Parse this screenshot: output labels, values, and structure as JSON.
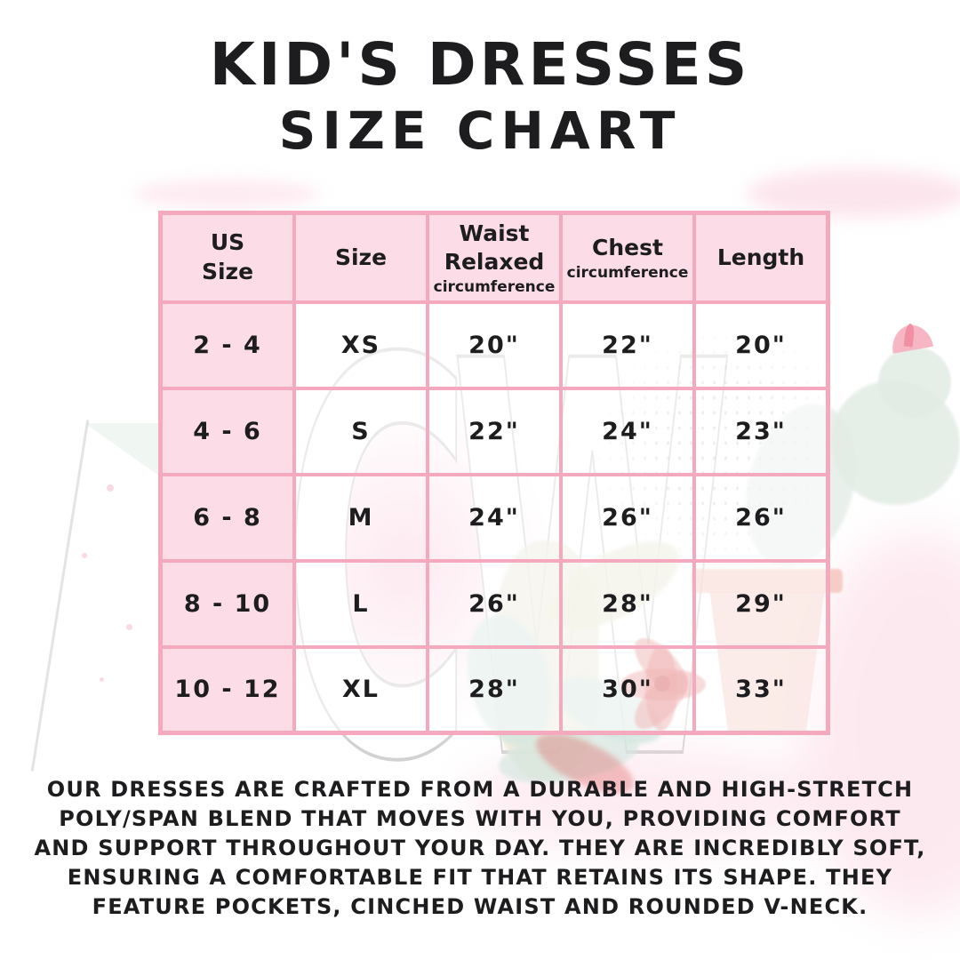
{
  "title": {
    "line1": "KID'S DRESSES",
    "line2": "SIZE CHART"
  },
  "chart_data": {
    "type": "table",
    "title": "Kid's Dresses Size Chart",
    "columns": [
      {
        "label": "US\nSize",
        "sub": ""
      },
      {
        "label": "Size",
        "sub": ""
      },
      {
        "label": "Waist\nRelaxed",
        "sub": "circumference"
      },
      {
        "label": "Chest",
        "sub": "circumference"
      },
      {
        "label": "Length",
        "sub": ""
      }
    ],
    "rows": [
      {
        "us": "2 - 4",
        "size": "XS",
        "waist": "20\"",
        "chest": "22\"",
        "length": "20\""
      },
      {
        "us": "4 - 6",
        "size": "S",
        "waist": "22\"",
        "chest": "24\"",
        "length": "23\""
      },
      {
        "us": "6 - 8",
        "size": "M",
        "waist": "24\"",
        "chest": "26\"",
        "length": "26\""
      },
      {
        "us": "8 - 10",
        "size": "L",
        "waist": "26\"",
        "chest": "28\"",
        "length": "29\""
      },
      {
        "us": "10 - 12",
        "size": "XL",
        "waist": "28\"",
        "chest": "30\"",
        "length": "33\""
      }
    ]
  },
  "description": {
    "lines": [
      "OUR DRESSES ARE CRAFTED FROM A DURABLE AND HIGH-STRETCH",
      "POLY/SPAN BLEND THAT MOVES WITH YOU, PROVIDING COMFORT",
      "AND SUPPORT THROUGHOUT YOUR DAY. THEY ARE INCREDIBLY SOFT,",
      "ENSURING A COMFORTABLE FIT THAT RETAINS ITS SHAPE. THEY",
      "FEATURE POCKETS, CINCHED WAIST AND ROUNDED V-NECK."
    ]
  },
  "watermark": {
    "text": "CW"
  },
  "colors": {
    "table_border": "#f5a9bf",
    "cell_pink": "#fcdde7",
    "ink": "#1d1d1f",
    "cactus_green": "#e2ece5",
    "leaf_olive": "#e8e8d3",
    "leaf_teal": "#d6e7e0",
    "flower_red": "#df5f5f",
    "pot_pink": "#f3bcb1",
    "blush": "#fbd8e3"
  }
}
